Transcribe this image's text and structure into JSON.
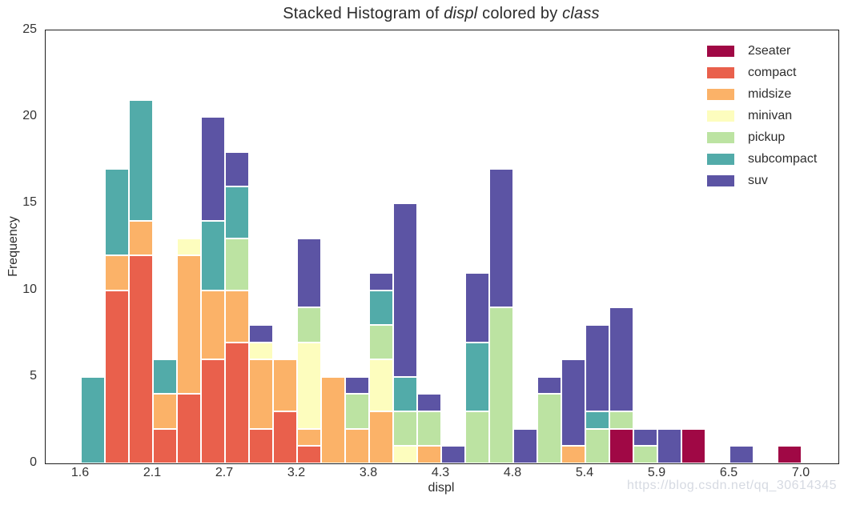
{
  "title": {
    "part1": "Stacked Histogram of ",
    "italic1": "displ",
    "part2": " colored by ",
    "italic2": "class"
  },
  "axes": {
    "x_label": "displ",
    "y_label": "Frequency",
    "y_ticks": [
      "0",
      "5",
      "10",
      "15",
      "20",
      "25"
    ],
    "x_ticks": [
      {
        "label": "1.6",
        "bin": 0
      },
      {
        "label": "2.1",
        "bin": 3
      },
      {
        "label": "2.7",
        "bin": 6
      },
      {
        "label": "3.2",
        "bin": 9
      },
      {
        "label": "3.8",
        "bin": 12
      },
      {
        "label": "4.3",
        "bin": 15
      },
      {
        "label": "4.8",
        "bin": 18
      },
      {
        "label": "5.4",
        "bin": 21
      },
      {
        "label": "5.9",
        "bin": 24
      },
      {
        "label": "6.5",
        "bin": 27
      },
      {
        "label": "7.0",
        "bin": 30
      }
    ]
  },
  "legend": {
    "items": [
      {
        "label": "2seater",
        "color": "#a00845"
      },
      {
        "label": "compact",
        "color": "#e9604c"
      },
      {
        "label": "midsize",
        "color": "#fbb268"
      },
      {
        "label": "minivan",
        "color": "#fdfdbe"
      },
      {
        "label": "pickup",
        "color": "#bce3a2"
      },
      {
        "label": "subcompact",
        "color": "#52aba9"
      },
      {
        "label": "suv",
        "color": "#5c54a4"
      }
    ]
  },
  "watermark": "https://blog.csdn.net/qq_30614345",
  "chart_data": {
    "type": "bar",
    "subtype": "stacked-histogram",
    "title": "Stacked Histogram of displ colored by class",
    "xlabel": "displ",
    "ylabel": "Frequency",
    "x_start": 1.6,
    "x_end": 7.0,
    "bin_width": 0.18,
    "n_bins": 30,
    "ylim": [
      0,
      25
    ],
    "grid": false,
    "legend_position": "upper right",
    "stack_order": [
      "2seater",
      "compact",
      "midsize",
      "minivan",
      "pickup",
      "subcompact",
      "suv"
    ],
    "colors": {
      "2seater": "#a00845",
      "compact": "#e9604c",
      "midsize": "#fbb268",
      "minivan": "#fdfdbe",
      "pickup": "#bce3a2",
      "subcompact": "#52aba9",
      "suv": "#5c54a4"
    },
    "bins": [
      {
        "subcompact": 5
      },
      {
        "compact": 10,
        "midsize": 2,
        "subcompact": 5
      },
      {
        "compact": 12,
        "midsize": 2,
        "subcompact": 7
      },
      {
        "compact": 2,
        "midsize": 2,
        "subcompact": 2
      },
      {
        "compact": 4,
        "midsize": 8,
        "minivan": 1
      },
      {
        "compact": 6,
        "midsize": 4,
        "subcompact": 4,
        "suv": 6
      },
      {
        "compact": 7,
        "midsize": 3,
        "pickup": 3,
        "subcompact": 3,
        "suv": 2
      },
      {
        "compact": 2,
        "midsize": 4,
        "minivan": 1,
        "suv": 1
      },
      {
        "compact": 3,
        "midsize": 3
      },
      {
        "compact": 1,
        "midsize": 1,
        "minivan": 5,
        "pickup": 2,
        "suv": 4
      },
      {
        "midsize": 5
      },
      {
        "midsize": 2,
        "pickup": 2,
        "suv": 1
      },
      {
        "midsize": 3,
        "minivan": 3,
        "pickup": 2,
        "subcompact": 2,
        "suv": 1
      },
      {
        "minivan": 1,
        "pickup": 2,
        "subcompact": 2,
        "suv": 10
      },
      {
        "midsize": 1,
        "pickup": 2,
        "suv": 1
      },
      {
        "suv": 1
      },
      {
        "pickup": 3,
        "subcompact": 4,
        "suv": 4
      },
      {
        "pickup": 9,
        "suv": 8
      },
      {
        "suv": 2
      },
      {
        "pickup": 4,
        "suv": 1
      },
      {
        "midsize": 1,
        "suv": 5
      },
      {
        "pickup": 2,
        "subcompact": 1,
        "suv": 5
      },
      {
        "2seater": 2,
        "pickup": 1,
        "suv": 6
      },
      {
        "pickup": 1,
        "suv": 1
      },
      {
        "suv": 2
      },
      {
        "2seater": 2
      },
      {},
      {
        "suv": 1
      },
      {},
      {
        "2seater": 1
      }
    ]
  }
}
